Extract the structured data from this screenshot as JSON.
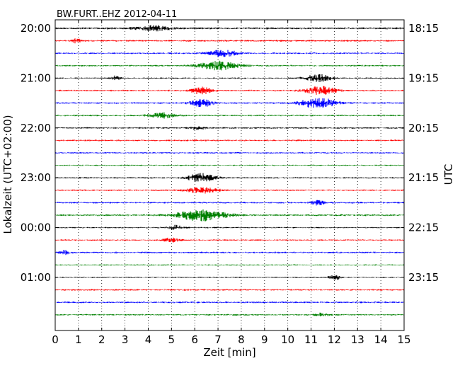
{
  "chart_data": {
    "type": "line",
    "title": "BW.FURT..EHZ 2012-04-11",
    "xlabel": "Zeit  [min]",
    "ylabel_left": "Lokalzeit (UTC+02:00)",
    "ylabel_right": "UTC",
    "xlim": [
      0,
      15
    ],
    "x_ticks": [
      "0",
      "1",
      "2",
      "3",
      "4",
      "5",
      "6",
      "7",
      "8",
      "9",
      "10",
      "11",
      "12",
      "13",
      "14",
      "15"
    ],
    "left_time_labels": [
      "20:00",
      "21:00",
      "22:00",
      "23:00",
      "00:00",
      "01:00"
    ],
    "right_time_labels": [
      "18:15",
      "19:15",
      "20:15",
      "21:15",
      "22:15",
      "23:15"
    ],
    "trace_colors": [
      "#000000",
      "#ff0000",
      "#0000ff",
      "#008000"
    ],
    "trace_count": 24,
    "trace_minutes": 15,
    "grid": "vertical dotted at each minute",
    "events": [
      {
        "trace": 0,
        "t": 4.2,
        "amp": 3.5,
        "w": 1.0
      },
      {
        "trace": 1,
        "t": 0.9,
        "amp": 3.0,
        "w": 0.25
      },
      {
        "trace": 2,
        "t": 7.2,
        "amp": 4.5,
        "w": 0.9
      },
      {
        "trace": 3,
        "t": 7.0,
        "amp": 6.0,
        "w": 1.2
      },
      {
        "trace": 4,
        "t": 2.6,
        "amp": 3.5,
        "w": 0.25
      },
      {
        "trace": 4,
        "t": 11.3,
        "amp": 5.0,
        "w": 0.8
      },
      {
        "trace": 5,
        "t": 6.3,
        "amp": 5.0,
        "w": 0.6
      },
      {
        "trace": 5,
        "t": 11.4,
        "amp": 6.0,
        "w": 0.9
      },
      {
        "trace": 6,
        "t": 6.3,
        "amp": 5.0,
        "w": 0.7
      },
      {
        "trace": 6,
        "t": 11.3,
        "amp": 7.0,
        "w": 1.1
      },
      {
        "trace": 7,
        "t": 4.6,
        "amp": 3.5,
        "w": 0.8
      },
      {
        "trace": 8,
        "t": 6.1,
        "amp": 2.5,
        "w": 0.4
      },
      {
        "trace": 12,
        "t": 6.3,
        "amp": 6.0,
        "w": 0.8
      },
      {
        "trace": 13,
        "t": 6.3,
        "amp": 4.0,
        "w": 0.9
      },
      {
        "trace": 14,
        "t": 11.3,
        "amp": 3.5,
        "w": 0.4
      },
      {
        "trace": 15,
        "t": 6.3,
        "amp": 8.0,
        "w": 1.4
      },
      {
        "trace": 16,
        "t": 5.2,
        "amp": 3.0,
        "w": 0.5
      },
      {
        "trace": 17,
        "t": 5.0,
        "amp": 3.0,
        "w": 0.5
      },
      {
        "trace": 18,
        "t": 0.4,
        "amp": 3.0,
        "w": 0.3
      },
      {
        "trace": 20,
        "t": 12.0,
        "amp": 4.5,
        "w": 0.3
      },
      {
        "trace": 23,
        "t": 11.5,
        "amp": 3.0,
        "w": 0.4
      }
    ]
  }
}
